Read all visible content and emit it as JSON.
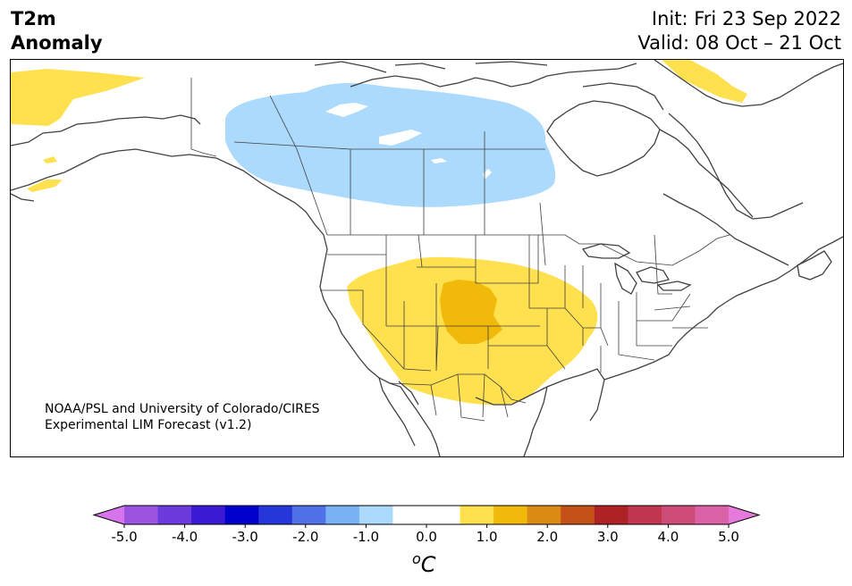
{
  "header": {
    "title_line1": "T2m",
    "title_line2": "Anomaly",
    "init": "Init: Fri 23 Sep 2022",
    "valid": "Valid: 08 Oct – 21 Oct"
  },
  "map": {
    "credit_line1": "NOAA/PSL and University of Colorado/CIRES",
    "credit_line2": "Experimental LIM Forecast (v1.2)",
    "region": "North America",
    "anomaly_fill_colors": {
      "warm_1": "#ffe14f",
      "warm_2": "#f1b90a",
      "cool_1": "#acdafc"
    }
  },
  "colorbar": {
    "colors": [
      "#d674ec",
      "#9c53e0",
      "#6c3adc",
      "#3c1ad4",
      "#0000cc",
      "#2537d8",
      "#4f70e6",
      "#78b1f4",
      "#acdafc",
      "#ffffff",
      "#ffffff",
      "#ffe14f",
      "#f1b90a",
      "#db8b14",
      "#c45218",
      "#ae2226",
      "#c03550",
      "#d04c78",
      "#dc62a8",
      "#e57adb"
    ],
    "ticks": [
      "-5.0",
      "-4.0",
      "-3.0",
      "-2.0",
      "-1.0",
      "0.0",
      "1.0",
      "2.0",
      "3.0",
      "4.0",
      "5.0"
    ],
    "unit_base": "C",
    "unit_sup": "o"
  }
}
